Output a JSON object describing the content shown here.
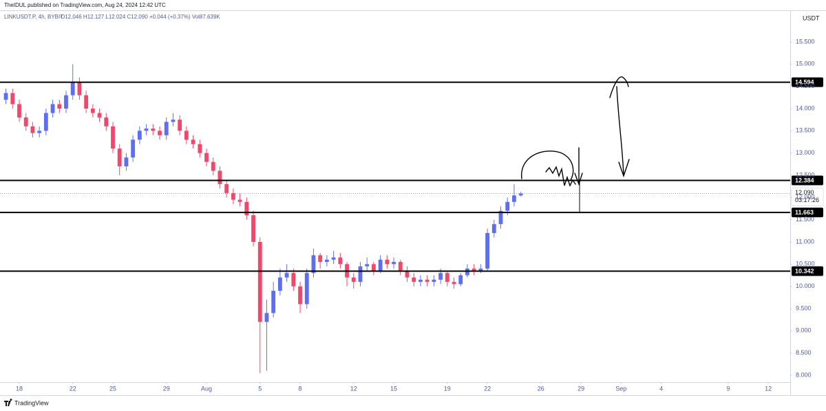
{
  "header": {
    "text": "TheIDUL published on TradingView.com, Aug 24, 2024 12:42 UTC"
  },
  "footer": {
    "logo": "TradingView"
  },
  "chart_data": {
    "type": "candlestick",
    "symbol": "LINKUSDT.P, 4h, BYBIT",
    "ohlc_label": "O12.046 H12.127 L12.024 C12.090 +0.044 (+0.37%) Vol87.639K",
    "currency": "USDT",
    "up_color": "#5d6ef0",
    "down_color": "#f0476a",
    "x": [
      17,
      17.5,
      18,
      18.5,
      19,
      19.5,
      20,
      20.5,
      21,
      21.5,
      22,
      22.5,
      23,
      23.5,
      24,
      24.5,
      25,
      25.5,
      26,
      26.5,
      27,
      27.5,
      28,
      28.5,
      29,
      29.5,
      30,
      30.5,
      31,
      31.5,
      32,
      32.5,
      33,
      33.5,
      34,
      34.5,
      35,
      35.5,
      36,
      36.5,
      37,
      37.5,
      38,
      38.5,
      39,
      39.5,
      40,
      40.5,
      41,
      41.5,
      42,
      42.5,
      43,
      43.5,
      44,
      44.5,
      45,
      45.5,
      46,
      46.5,
      47,
      47.5,
      48,
      48.5,
      49,
      49.5,
      50,
      50.5,
      51,
      51.5,
      52,
      52.5,
      53,
      53.5,
      54,
      54.5,
      55,
      55.5
    ],
    "open": [
      14.2,
      14.35,
      14.1,
      13.8,
      13.6,
      13.45,
      13.5,
      13.9,
      14.1,
      14.0,
      14.3,
      14.6,
      14.3,
      14.0,
      13.9,
      13.8,
      13.6,
      13.1,
      12.7,
      12.9,
      13.3,
      13.5,
      13.55,
      13.5,
      13.4,
      13.7,
      13.75,
      13.5,
      13.3,
      13.2,
      13.0,
      12.8,
      12.6,
      12.3,
      12.1,
      11.95,
      11.9,
      11.6,
      11.0,
      9.2,
      9.4,
      9.9,
      10.2,
      10.3,
      10.0,
      9.6,
      10.3,
      10.7,
      10.55,
      10.6,
      10.65,
      10.5,
      10.2,
      10.1,
      10.45,
      10.5,
      10.35,
      10.6,
      10.5,
      10.55,
      10.35,
      10.2,
      10.1,
      10.15,
      10.1,
      10.15,
      10.3,
      10.1,
      10.05,
      10.25,
      10.4,
      10.35,
      10.4,
      11.2,
      11.4,
      11.7,
      11.9,
      12.046
    ],
    "high": [
      14.45,
      14.45,
      14.2,
      13.9,
      13.7,
      13.6,
      14.0,
      14.2,
      14.2,
      14.4,
      15.0,
      14.7,
      14.4,
      14.1,
      14.0,
      13.9,
      13.7,
      13.2,
      13.0,
      13.4,
      13.6,
      13.65,
      13.65,
      13.6,
      13.8,
      13.9,
      13.85,
      13.6,
      13.4,
      13.3,
      13.1,
      12.9,
      12.7,
      12.4,
      12.2,
      12.1,
      12.0,
      11.7,
      11.1,
      9.7,
      10.1,
      10.4,
      10.5,
      10.4,
      10.1,
      10.4,
      10.85,
      10.75,
      10.7,
      10.8,
      10.75,
      10.55,
      10.3,
      10.55,
      10.65,
      10.55,
      10.7,
      10.7,
      10.65,
      10.6,
      10.45,
      10.3,
      10.25,
      10.25,
      10.25,
      10.4,
      10.35,
      10.2,
      10.3,
      10.5,
      10.5,
      10.5,
      11.3,
      11.5,
      11.8,
      12.0,
      12.3,
      12.127
    ],
    "low": [
      14.1,
      14.0,
      13.7,
      13.5,
      13.35,
      13.35,
      13.4,
      13.8,
      13.9,
      13.9,
      14.2,
      14.2,
      13.9,
      13.8,
      13.7,
      13.5,
      13.0,
      12.5,
      12.6,
      12.8,
      13.2,
      13.4,
      13.4,
      13.3,
      13.3,
      13.6,
      13.4,
      13.2,
      13.1,
      12.9,
      12.7,
      12.5,
      12.2,
      12.0,
      11.85,
      11.8,
      11.5,
      10.9,
      8.05,
      8.1,
      9.3,
      9.8,
      10.1,
      9.9,
      9.4,
      9.5,
      10.2,
      10.4,
      10.45,
      10.5,
      10.4,
      10.0,
      9.95,
      10.0,
      10.35,
      10.25,
      10.3,
      10.4,
      10.4,
      10.25,
      10.1,
      10.0,
      10.0,
      10.0,
      10.0,
      10.05,
      10.0,
      9.95,
      10.0,
      10.2,
      10.25,
      10.3,
      10.35,
      11.1,
      11.3,
      11.6,
      11.8,
      12.024
    ],
    "close": [
      14.35,
      14.1,
      13.8,
      13.6,
      13.45,
      13.5,
      13.9,
      14.1,
      14.0,
      14.3,
      14.6,
      14.3,
      14.0,
      13.9,
      13.8,
      13.6,
      13.1,
      12.7,
      12.9,
      13.3,
      13.5,
      13.55,
      13.5,
      13.4,
      13.7,
      13.75,
      13.5,
      13.3,
      13.2,
      13.0,
      12.8,
      12.6,
      12.3,
      12.1,
      11.95,
      11.9,
      11.6,
      11.0,
      9.2,
      9.4,
      9.9,
      10.2,
      10.3,
      10.0,
      9.6,
      10.3,
      10.7,
      10.55,
      10.6,
      10.65,
      10.5,
      10.2,
      10.1,
      10.45,
      10.5,
      10.35,
      10.6,
      10.5,
      10.55,
      10.35,
      10.2,
      10.1,
      10.15,
      10.1,
      10.15,
      10.3,
      10.1,
      10.05,
      10.25,
      10.4,
      10.35,
      10.4,
      11.2,
      11.4,
      11.7,
      11.9,
      12.046,
      12.09
    ],
    "xlim": [
      16.56,
      75.64
    ],
    "xticks": [
      {
        "value": 18,
        "label": "18"
      },
      {
        "value": 22,
        "label": "22"
      },
      {
        "value": 25,
        "label": "25"
      },
      {
        "value": 29,
        "label": "29"
      },
      {
        "value": 32,
        "label": "Aug"
      },
      {
        "value": 36,
        "label": "5"
      },
      {
        "value": 39,
        "label": "8"
      },
      {
        "value": 43,
        "label": "12"
      },
      {
        "value": 46,
        "label": "15"
      },
      {
        "value": 50,
        "label": "19"
      },
      {
        "value": 53,
        "label": "22"
      },
      {
        "value": 57,
        "label": "26"
      },
      {
        "value": 60,
        "label": "29"
      },
      {
        "value": 63,
        "label": "Sep"
      },
      {
        "value": 66,
        "label": "4"
      },
      {
        "value": 71,
        "label": "9"
      },
      {
        "value": 74,
        "label": "12"
      }
    ],
    "ylim": [
      7.845,
      16.211
    ],
    "yticks": [
      {
        "value": 8,
        "label": "8.000"
      },
      {
        "value": 8.5,
        "label": "8.500"
      },
      {
        "value": 9,
        "label": "9.000"
      },
      {
        "value": 9.5,
        "label": "9.500"
      },
      {
        "value": 10,
        "label": "10.000"
      },
      {
        "value": 10.5,
        "label": "10.500"
      },
      {
        "value": 11,
        "label": "11.000"
      },
      {
        "value": 11.5,
        "label": "11.500"
      },
      {
        "value": 12,
        "label": "12.000"
      },
      {
        "value": 12.5,
        "label": "12.500"
      },
      {
        "value": 13,
        "label": "13.000"
      },
      {
        "value": 13.5,
        "label": "13.500"
      },
      {
        "value": 14,
        "label": "14.000"
      },
      {
        "value": 14.5,
        "label": "14.500"
      },
      {
        "value": 15,
        "label": "15.000"
      },
      {
        "value": 15.5,
        "label": "15.500"
      }
    ],
    "grid": false,
    "levels": [
      {
        "value": 14.594,
        "label": "14.594"
      },
      {
        "value": 12.384,
        "label": "12.384"
      },
      {
        "value": 11.663,
        "label": "11.663"
      },
      {
        "value": 10.342,
        "label": "10.342"
      }
    ],
    "last_price": {
      "value": 12.09,
      "label": "12.090"
    },
    "countdown": "03:17:26"
  }
}
